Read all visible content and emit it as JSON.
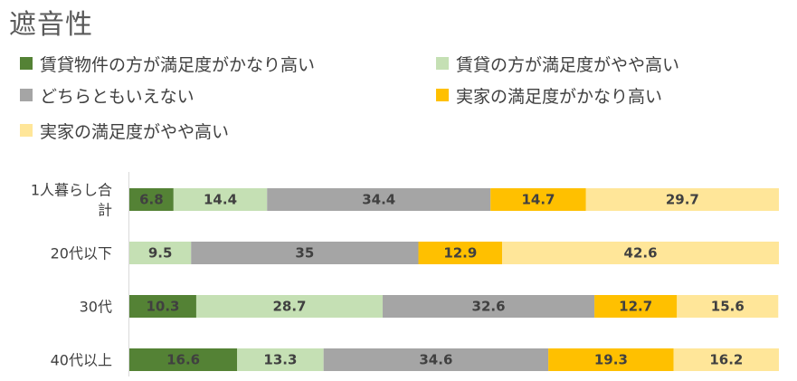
{
  "chart_data": {
    "type": "bar",
    "orientation": "horizontal",
    "stacked": "100%",
    "title": "遮音性",
    "categories": [
      [
        "1人暮らし合",
        "計"
      ],
      [
        "20代以下"
      ],
      [
        "30代"
      ],
      [
        "40代以上"
      ]
    ],
    "series": [
      {
        "name": "賃貸物件の方が満足度がかなり高い",
        "color": "#548235",
        "values": [
          6.8,
          null,
          10.3,
          16.6
        ]
      },
      {
        "name": "賃貸の方が満足度がやや高い",
        "color": "#C5E0B4",
        "values": [
          14.4,
          9.5,
          28.7,
          13.3
        ]
      },
      {
        "name": "どちらともいえない",
        "color": "#A5A5A5",
        "values": [
          34.4,
          35,
          32.6,
          34.6
        ]
      },
      {
        "name": "実家の満足度がかなり高い",
        "color": "#FFC000",
        "values": [
          14.7,
          12.9,
          12.7,
          19.3
        ]
      },
      {
        "name": "実家の満足度がやや高い",
        "color": "#FFE699",
        "values": [
          29.7,
          42.6,
          15.6,
          16.2
        ]
      }
    ],
    "xlim": [
      0,
      100
    ],
    "grid": false,
    "legend_position": "top"
  }
}
